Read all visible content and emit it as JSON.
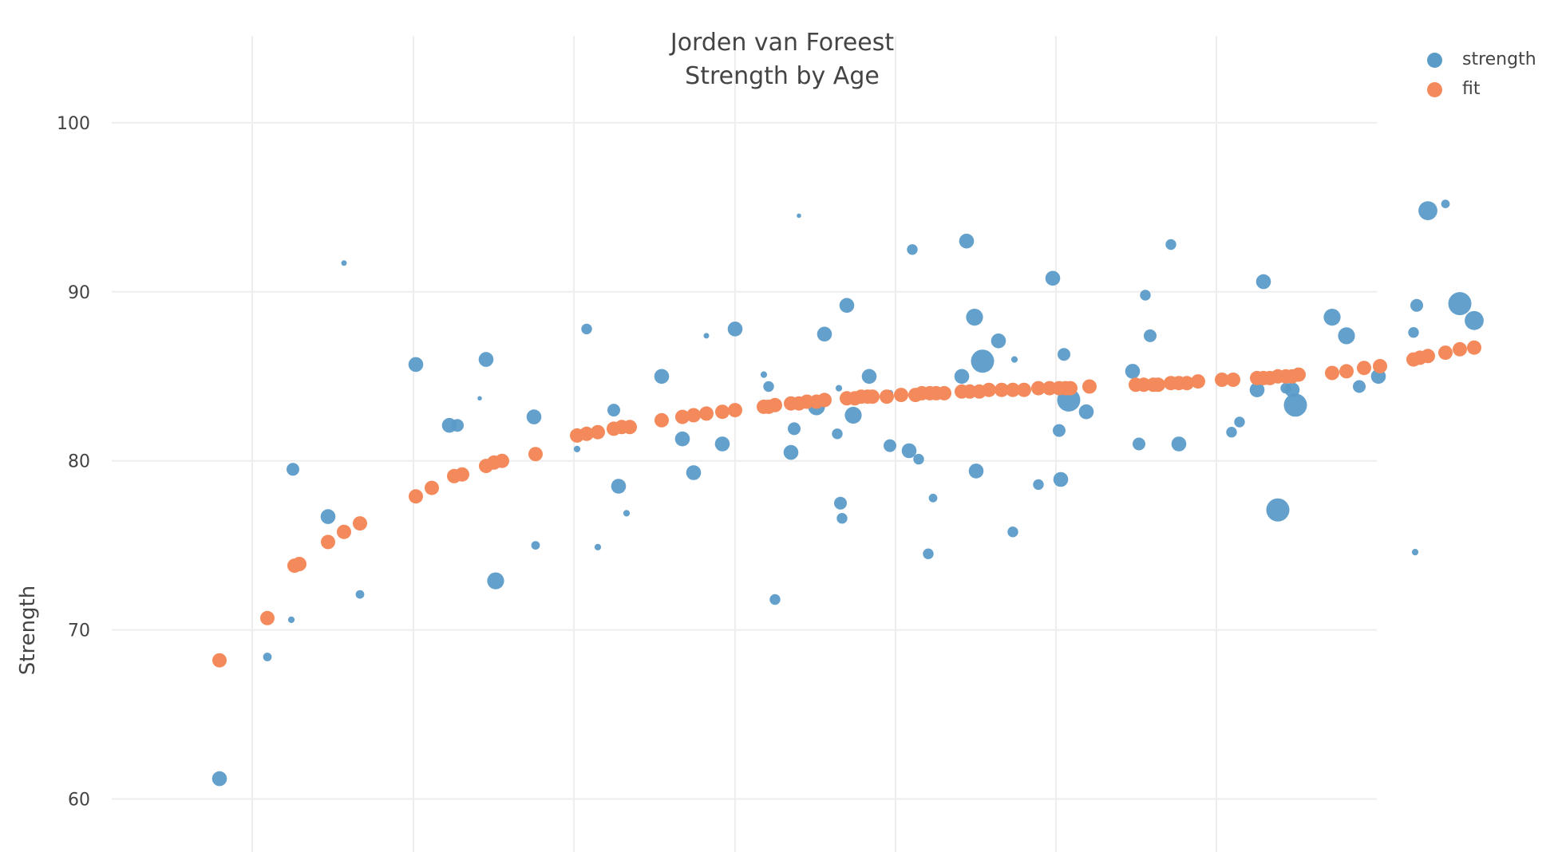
{
  "chart_data": {
    "type": "scatter",
    "title_lines": [
      "Jorden van Foreest",
      "Strength by Age"
    ],
    "xlabel": "",
    "ylabel": "Strength",
    "ylim": [
      57,
      104
    ],
    "yticks": [
      60,
      70,
      80,
      90,
      100
    ],
    "grid": true,
    "legend_position": "top-right",
    "series": [
      {
        "name": "strength",
        "color": "#5b9bc8",
        "points": [
          {
            "x": 0.3,
            "y": 61.2,
            "s": 6
          },
          {
            "x": 0.6,
            "y": 68.4,
            "s": 3
          },
          {
            "x": 0.75,
            "y": 70.6,
            "s": 2
          },
          {
            "x": 0.76,
            "y": 79.5,
            "s": 5
          },
          {
            "x": 0.98,
            "y": 76.7,
            "s": 6
          },
          {
            "x": 1.08,
            "y": 91.7,
            "s": 1.5
          },
          {
            "x": 1.18,
            "y": 72.1,
            "s": 3
          },
          {
            "x": 1.53,
            "y": 85.7,
            "s": 6
          },
          {
            "x": 1.63,
            "y": 78.5,
            "s": 4
          },
          {
            "x": 1.74,
            "y": 82.1,
            "s": 6
          },
          {
            "x": 1.79,
            "y": 82.1,
            "s": 5
          },
          {
            "x": 1.93,
            "y": 83.7,
            "s": 1
          },
          {
            "x": 1.97,
            "y": 86.0,
            "s": 6
          },
          {
            "x": 2.03,
            "y": 72.9,
            "s": 7
          },
          {
            "x": 2.27,
            "y": 82.6,
            "s": 6
          },
          {
            "x": 2.28,
            "y": 75.0,
            "s": 3
          },
          {
            "x": 2.54,
            "y": 80.7,
            "s": 2
          },
          {
            "x": 2.6,
            "y": 87.8,
            "s": 4
          },
          {
            "x": 2.67,
            "y": 74.9,
            "s": 2
          },
          {
            "x": 2.77,
            "y": 83.0,
            "s": 5
          },
          {
            "x": 2.8,
            "y": 78.5,
            "s": 6
          },
          {
            "x": 2.85,
            "y": 76.9,
            "s": 2
          },
          {
            "x": 3.07,
            "y": 85.0,
            "s": 6
          },
          {
            "x": 3.2,
            "y": 81.3,
            "s": 6
          },
          {
            "x": 3.27,
            "y": 79.3,
            "s": 6
          },
          {
            "x": 3.35,
            "y": 87.4,
            "s": 1.5
          },
          {
            "x": 3.45,
            "y": 81.0,
            "s": 6
          },
          {
            "x": 3.53,
            "y": 87.8,
            "s": 6
          },
          {
            "x": 3.71,
            "y": 85.1,
            "s": 2
          },
          {
            "x": 3.74,
            "y": 84.4,
            "s": 4
          },
          {
            "x": 3.78,
            "y": 71.8,
            "s": 4
          },
          {
            "x": 3.88,
            "y": 80.5,
            "s": 6
          },
          {
            "x": 3.9,
            "y": 81.9,
            "s": 5
          },
          {
            "x": 3.93,
            "y": 94.5,
            "s": 1
          },
          {
            "x": 4.04,
            "y": 83.2,
            "s": 7
          },
          {
            "x": 4.09,
            "y": 87.5,
            "s": 6
          },
          {
            "x": 4.17,
            "y": 81.6,
            "s": 4
          },
          {
            "x": 4.18,
            "y": 84.3,
            "s": 2
          },
          {
            "x": 4.19,
            "y": 77.5,
            "s": 5
          },
          {
            "x": 4.2,
            "y": 76.6,
            "s": 4
          },
          {
            "x": 4.23,
            "y": 89.2,
            "s": 6
          },
          {
            "x": 4.27,
            "y": 82.7,
            "s": 7
          },
          {
            "x": 4.37,
            "y": 85.0,
            "s": 6
          },
          {
            "x": 4.5,
            "y": 80.9,
            "s": 5
          },
          {
            "x": 4.5,
            "y": 84.0,
            "s": 2
          },
          {
            "x": 4.62,
            "y": 80.6,
            "s": 6
          },
          {
            "x": 4.64,
            "y": 92.5,
            "s": 4
          },
          {
            "x": 4.68,
            "y": 80.1,
            "s": 4
          },
          {
            "x": 4.74,
            "y": 74.5,
            "s": 4
          },
          {
            "x": 4.77,
            "y": 77.8,
            "s": 3
          },
          {
            "x": 4.95,
            "y": 85.0,
            "s": 6
          },
          {
            "x": 4.98,
            "y": 93.0,
            "s": 6
          },
          {
            "x": 5.03,
            "y": 88.5,
            "s": 7
          },
          {
            "x": 5.04,
            "y": 79.4,
            "s": 6
          },
          {
            "x": 5.08,
            "y": 85.9,
            "s": 10
          },
          {
            "x": 5.18,
            "y": 87.1,
            "s": 6
          },
          {
            "x": 5.27,
            "y": 75.8,
            "s": 4
          },
          {
            "x": 5.28,
            "y": 86.0,
            "s": 2
          },
          {
            "x": 5.43,
            "y": 78.6,
            "s": 4
          },
          {
            "x": 5.52,
            "y": 90.8,
            "s": 6
          },
          {
            "x": 5.56,
            "y": 81.8,
            "s": 5
          },
          {
            "x": 5.57,
            "y": 78.9,
            "s": 6
          },
          {
            "x": 5.59,
            "y": 86.3,
            "s": 5
          },
          {
            "x": 5.62,
            "y": 83.6,
            "s": 10
          },
          {
            "x": 5.73,
            "y": 82.9,
            "s": 6
          },
          {
            "x": 6.02,
            "y": 85.3,
            "s": 6
          },
          {
            "x": 6.06,
            "y": 81.0,
            "s": 5
          },
          {
            "x": 6.1,
            "y": 89.8,
            "s": 4
          },
          {
            "x": 6.13,
            "y": 87.4,
            "s": 5
          },
          {
            "x": 6.26,
            "y": 92.8,
            "s": 4
          },
          {
            "x": 6.31,
            "y": 81.0,
            "s": 6
          },
          {
            "x": 6.64,
            "y": 81.7,
            "s": 4
          },
          {
            "x": 6.69,
            "y": 82.3,
            "s": 4
          },
          {
            "x": 6.8,
            "y": 84.2,
            "s": 6
          },
          {
            "x": 6.84,
            "y": 90.6,
            "s": 6
          },
          {
            "x": 6.93,
            "y": 77.1,
            "s": 10
          },
          {
            "x": 6.98,
            "y": 84.3,
            "s": 4
          },
          {
            "x": 7.02,
            "y": 84.2,
            "s": 6
          },
          {
            "x": 7.04,
            "y": 83.3,
            "s": 10
          },
          {
            "x": 7.27,
            "y": 88.5,
            "s": 7
          },
          {
            "x": 7.36,
            "y": 87.4,
            "s": 7
          },
          {
            "x": 7.44,
            "y": 84.4,
            "s": 5
          },
          {
            "x": 7.56,
            "y": 85.0,
            "s": 6
          },
          {
            "x": 7.78,
            "y": 87.6,
            "s": 4
          },
          {
            "x": 7.79,
            "y": 74.6,
            "s": 2
          },
          {
            "x": 7.8,
            "y": 89.2,
            "s": 5
          },
          {
            "x": 7.87,
            "y": 94.8,
            "s": 8
          },
          {
            "x": 7.98,
            "y": 95.2,
            "s": 3
          },
          {
            "x": 8.07,
            "y": 89.3,
            "s": 10
          },
          {
            "x": 8.16,
            "y": 88.3,
            "s": 8
          }
        ]
      },
      {
        "name": "fit",
        "color": "#f48a5b",
        "points": [
          {
            "x": 0.3,
            "y": 68.2
          },
          {
            "x": 0.6,
            "y": 70.7
          },
          {
            "x": 0.77,
            "y": 73.8
          },
          {
            "x": 0.8,
            "y": 73.9
          },
          {
            "x": 0.98,
            "y": 75.2
          },
          {
            "x": 1.08,
            "y": 75.8
          },
          {
            "x": 1.18,
            "y": 76.3
          },
          {
            "x": 1.53,
            "y": 77.9
          },
          {
            "x": 1.63,
            "y": 78.4
          },
          {
            "x": 1.77,
            "y": 79.1
          },
          {
            "x": 1.82,
            "y": 79.2
          },
          {
            "x": 1.97,
            "y": 79.7
          },
          {
            "x": 2.02,
            "y": 79.9
          },
          {
            "x": 2.07,
            "y": 80.0
          },
          {
            "x": 2.28,
            "y": 80.4
          },
          {
            "x": 2.54,
            "y": 81.5
          },
          {
            "x": 2.6,
            "y": 81.6
          },
          {
            "x": 2.67,
            "y": 81.7
          },
          {
            "x": 2.77,
            "y": 81.9
          },
          {
            "x": 2.82,
            "y": 82.0
          },
          {
            "x": 2.87,
            "y": 82.0
          },
          {
            "x": 3.07,
            "y": 82.4
          },
          {
            "x": 3.2,
            "y": 82.6
          },
          {
            "x": 3.27,
            "y": 82.7
          },
          {
            "x": 3.35,
            "y": 82.8
          },
          {
            "x": 3.45,
            "y": 82.9
          },
          {
            "x": 3.53,
            "y": 83.0
          },
          {
            "x": 3.71,
            "y": 83.2
          },
          {
            "x": 3.74,
            "y": 83.2
          },
          {
            "x": 3.78,
            "y": 83.3
          },
          {
            "x": 3.88,
            "y": 83.4
          },
          {
            "x": 3.93,
            "y": 83.4
          },
          {
            "x": 3.98,
            "y": 83.5
          },
          {
            "x": 4.04,
            "y": 83.5
          },
          {
            "x": 4.09,
            "y": 83.6
          },
          {
            "x": 4.23,
            "y": 83.7
          },
          {
            "x": 4.28,
            "y": 83.7
          },
          {
            "x": 4.32,
            "y": 83.8
          },
          {
            "x": 4.36,
            "y": 83.8
          },
          {
            "x": 4.39,
            "y": 83.8
          },
          {
            "x": 4.48,
            "y": 83.8
          },
          {
            "x": 4.57,
            "y": 83.9
          },
          {
            "x": 4.66,
            "y": 83.9
          },
          {
            "x": 4.7,
            "y": 84.0
          },
          {
            "x": 4.75,
            "y": 84.0
          },
          {
            "x": 4.79,
            "y": 84.0
          },
          {
            "x": 4.84,
            "y": 84.0
          },
          {
            "x": 4.95,
            "y": 84.1
          },
          {
            "x": 5.0,
            "y": 84.1
          },
          {
            "x": 5.06,
            "y": 84.1
          },
          {
            "x": 5.12,
            "y": 84.2
          },
          {
            "x": 5.2,
            "y": 84.2
          },
          {
            "x": 5.27,
            "y": 84.2
          },
          {
            "x": 5.34,
            "y": 84.2
          },
          {
            "x": 5.43,
            "y": 84.3
          },
          {
            "x": 5.5,
            "y": 84.3
          },
          {
            "x": 5.56,
            "y": 84.3
          },
          {
            "x": 5.6,
            "y": 84.3
          },
          {
            "x": 5.63,
            "y": 84.3
          },
          {
            "x": 5.75,
            "y": 84.4
          },
          {
            "x": 6.04,
            "y": 84.5
          },
          {
            "x": 6.09,
            "y": 84.5
          },
          {
            "x": 6.15,
            "y": 84.5
          },
          {
            "x": 6.18,
            "y": 84.5
          },
          {
            "x": 6.26,
            "y": 84.6
          },
          {
            "x": 6.31,
            "y": 84.6
          },
          {
            "x": 6.36,
            "y": 84.6
          },
          {
            "x": 6.43,
            "y": 84.7
          },
          {
            "x": 6.58,
            "y": 84.8
          },
          {
            "x": 6.65,
            "y": 84.8
          },
          {
            "x": 6.8,
            "y": 84.9
          },
          {
            "x": 6.84,
            "y": 84.9
          },
          {
            "x": 6.88,
            "y": 84.9
          },
          {
            "x": 6.93,
            "y": 85.0
          },
          {
            "x": 6.98,
            "y": 85.0
          },
          {
            "x": 7.02,
            "y": 85.0
          },
          {
            "x": 7.06,
            "y": 85.1
          },
          {
            "x": 7.27,
            "y": 85.2
          },
          {
            "x": 7.36,
            "y": 85.3
          },
          {
            "x": 7.47,
            "y": 85.5
          },
          {
            "x": 7.57,
            "y": 85.6
          },
          {
            "x": 7.78,
            "y": 86.0
          },
          {
            "x": 7.82,
            "y": 86.1
          },
          {
            "x": 7.87,
            "y": 86.2
          },
          {
            "x": 7.98,
            "y": 86.4
          },
          {
            "x": 8.07,
            "y": 86.6
          },
          {
            "x": 8.16,
            "y": 86.7
          }
        ]
      }
    ]
  }
}
